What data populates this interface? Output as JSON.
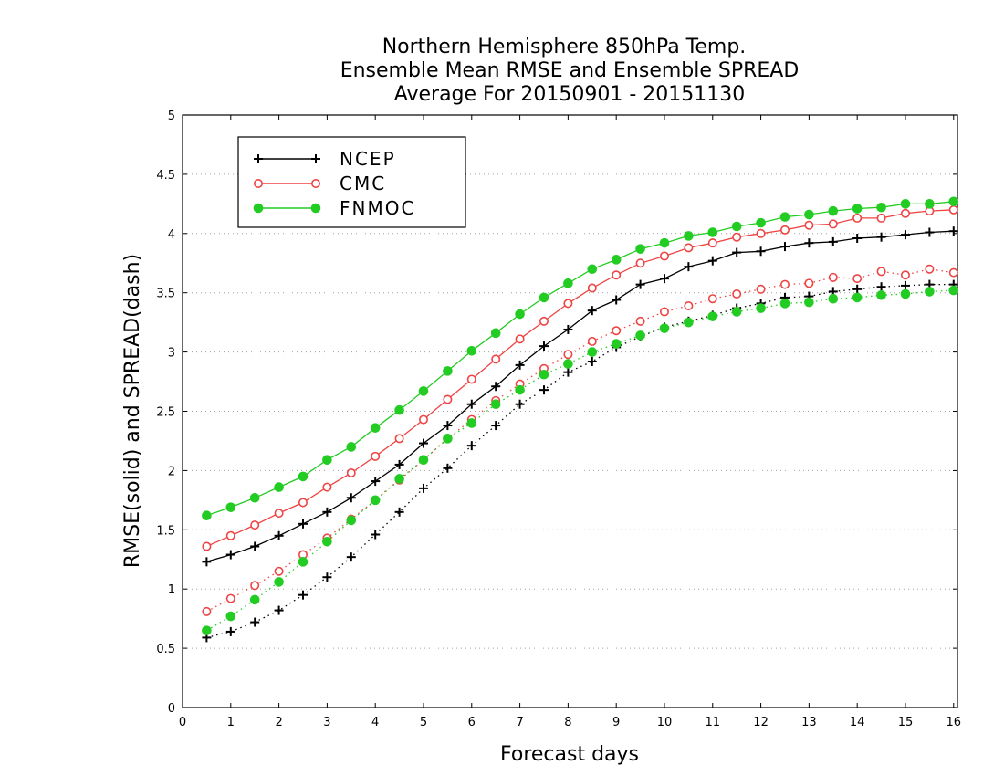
{
  "chart_data": {
    "type": "line",
    "title": [
      "Northern Hemisphere 850hPa Temp.",
      "Ensemble Mean RMSE and Ensemble SPREAD",
      "Average For 20150901 - 20151130"
    ],
    "xlabel": "Forecast days",
    "ylabel": "RMSE(solid) and SPREAD(dash)",
    "xlim": [
      0,
      16.08
    ],
    "ylim": [
      0,
      5
    ],
    "xticks": [
      0,
      1,
      2,
      3,
      4,
      5,
      6,
      7,
      8,
      9,
      10,
      11,
      12,
      13,
      14,
      15,
      16
    ],
    "yticks": [
      0,
      0.5,
      1,
      1.5,
      2,
      2.5,
      3,
      3.5,
      4,
      4.5,
      5
    ],
    "ytick_labels": [
      "0",
      "0.5",
      "1",
      "1.5",
      "2",
      "2.5",
      "3",
      "3.5",
      "4",
      "4.5",
      "5"
    ],
    "grid": "horizontal dotted",
    "legend_position": "top-left",
    "x": [
      0.5,
      1.0,
      1.5,
      2.0,
      2.5,
      3.0,
      3.5,
      4.0,
      4.5,
      5.0,
      5.5,
      6.0,
      6.5,
      7.0,
      7.5,
      8.0,
      8.5,
      9.0,
      9.5,
      10.0,
      10.5,
      11.0,
      11.5,
      12.0,
      12.5,
      13.0,
      13.5,
      14.0,
      14.5,
      15.0,
      15.5,
      16.0
    ],
    "series": [
      {
        "name": "NCEP",
        "color": "#000000",
        "marker": "plus",
        "rmse": [
          1.23,
          1.29,
          1.36,
          1.45,
          1.55,
          1.65,
          1.77,
          1.91,
          2.05,
          2.23,
          2.38,
          2.56,
          2.71,
          2.89,
          3.05,
          3.19,
          3.35,
          3.44,
          3.57,
          3.62,
          3.72,
          3.77,
          3.84,
          3.85,
          3.89,
          3.92,
          3.93,
          3.96,
          3.97,
          3.99,
          4.01,
          4.02
        ],
        "spread": [
          0.59,
          0.64,
          0.72,
          0.82,
          0.95,
          1.1,
          1.27,
          1.46,
          1.65,
          1.85,
          2.02,
          2.21,
          2.38,
          2.56,
          2.68,
          2.83,
          2.92,
          3.04,
          3.13,
          3.21,
          3.26,
          3.31,
          3.37,
          3.41,
          3.46,
          3.47,
          3.51,
          3.53,
          3.55,
          3.56,
          3.57,
          3.57
        ]
      },
      {
        "name": "CMC",
        "color": "#ee4444",
        "marker": "open-circle",
        "rmse": [
          1.36,
          1.45,
          1.54,
          1.64,
          1.73,
          1.86,
          1.98,
          2.12,
          2.27,
          2.43,
          2.6,
          2.77,
          2.94,
          3.11,
          3.26,
          3.41,
          3.54,
          3.65,
          3.75,
          3.81,
          3.88,
          3.92,
          3.97,
          4.0,
          4.03,
          4.07,
          4.08,
          4.13,
          4.13,
          4.17,
          4.19,
          4.2
        ],
        "spread": [
          0.81,
          0.92,
          1.03,
          1.15,
          1.29,
          1.43,
          1.59,
          1.75,
          1.92,
          2.09,
          2.27,
          2.43,
          2.59,
          2.73,
          2.86,
          2.98,
          3.09,
          3.18,
          3.26,
          3.34,
          3.39,
          3.45,
          3.49,
          3.53,
          3.57,
          3.58,
          3.63,
          3.62,
          3.68,
          3.65,
          3.7,
          3.67
        ]
      },
      {
        "name": "FNMOC",
        "color": "#22cc22",
        "marker": "filled-circle",
        "rmse": [
          1.62,
          1.69,
          1.77,
          1.86,
          1.95,
          2.09,
          2.2,
          2.36,
          2.51,
          2.67,
          2.84,
          3.01,
          3.16,
          3.32,
          3.46,
          3.58,
          3.7,
          3.78,
          3.87,
          3.92,
          3.98,
          4.01,
          4.06,
          4.09,
          4.14,
          4.16,
          4.19,
          4.21,
          4.22,
          4.25,
          4.25,
          4.27
        ],
        "spread": [
          0.65,
          0.77,
          0.91,
          1.06,
          1.23,
          1.4,
          1.58,
          1.75,
          1.93,
          2.09,
          2.27,
          2.4,
          2.56,
          2.68,
          2.81,
          2.9,
          3.0,
          3.07,
          3.14,
          3.2,
          3.25,
          3.3,
          3.34,
          3.37,
          3.41,
          3.42,
          3.45,
          3.46,
          3.48,
          3.49,
          3.51,
          3.52
        ]
      }
    ]
  }
}
